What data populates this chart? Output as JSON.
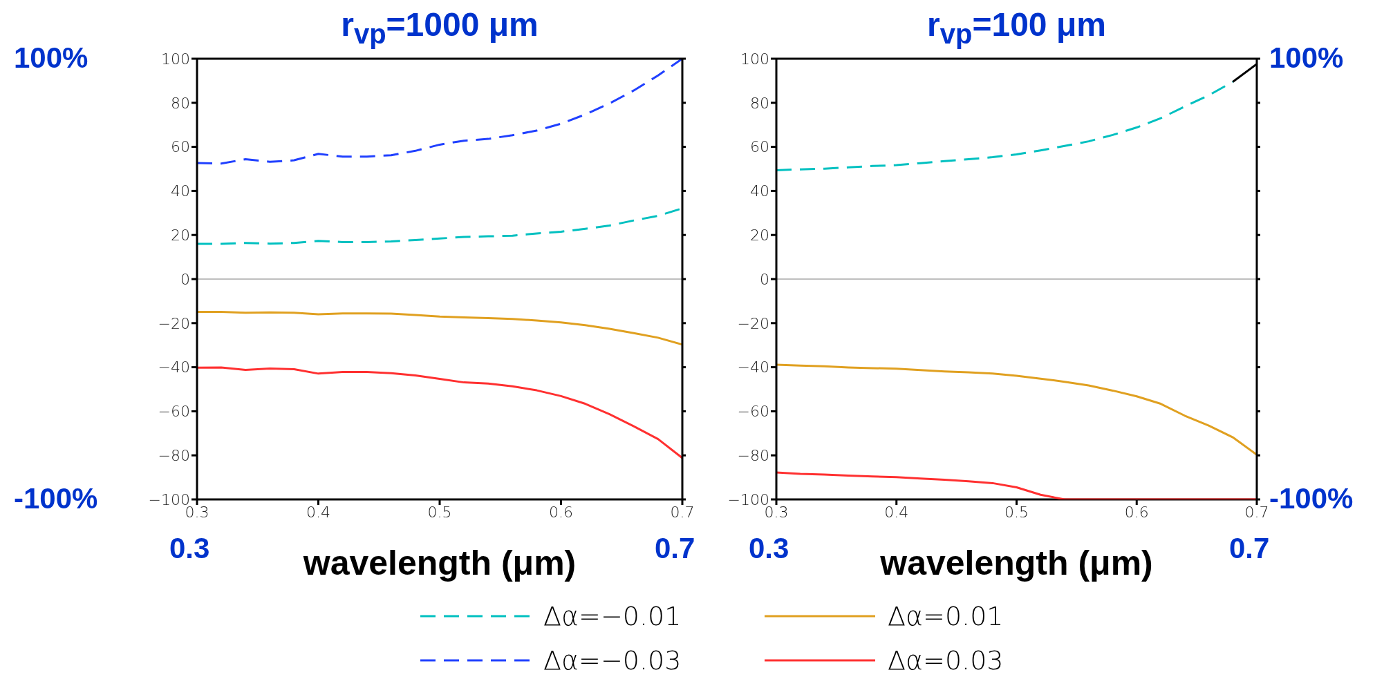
{
  "chart_data": [
    {
      "type": "line",
      "title": "r$_{vp}$=1000 μm",
      "xlabel": "wavelength (μm)",
      "xlim": [
        0.3,
        0.7
      ],
      "xticks": [
        0.3,
        0.4,
        0.5,
        0.6,
        0.7
      ],
      "ylim": [
        -100,
        100
      ],
      "yticks": [
        -100,
        -80,
        -60,
        -40,
        -20,
        0,
        20,
        40,
        60,
        80,
        100
      ],
      "grid": false,
      "legend": "bottom",
      "marker": "none",
      "x": [
        0.3,
        0.32,
        0.34,
        0.36,
        0.38,
        0.4,
        0.42,
        0.44,
        0.46,
        0.48,
        0.5,
        0.52,
        0.54,
        0.56,
        0.58,
        0.6,
        0.62,
        0.64,
        0.66,
        0.68,
        0.7
      ],
      "ref_lines": [
        {
          "axis": "y",
          "value": 0,
          "color": "#aaaaaa"
        }
      ],
      "annotations": [
        "100%",
        "-100%",
        "0.3",
        "0.7"
      ],
      "series": [
        {
          "name": "Δα=−0.01",
          "color": "#00c0c0",
          "line_style": "dashed",
          "values": [
            16,
            16,
            16.4,
            16.1,
            16.4,
            17.3,
            16.8,
            16.8,
            17.1,
            17.7,
            18.4,
            19.1,
            19.4,
            19.7,
            20.7,
            21.5,
            22.8,
            24.3,
            26.6,
            28.7,
            32.1
          ]
        },
        {
          "name": "Δα=−0.03",
          "color": "#2040ff",
          "line_style": "dashed",
          "values": [
            52.7,
            52.4,
            54.4,
            53.2,
            53.9,
            56.8,
            55.6,
            55.6,
            56.2,
            58.2,
            61,
            62.8,
            63.6,
            65.3,
            67.4,
            70.5,
            74.7,
            79.7,
            85.6,
            92.4,
            100
          ]
        },
        {
          "name": "Δα=0.01",
          "color": "#e0a020",
          "line_style": "solid",
          "values": [
            -14.9,
            -14.9,
            -15.3,
            -15.1,
            -15.3,
            -16,
            -15.6,
            -15.6,
            -15.7,
            -16.3,
            -17,
            -17.4,
            -17.7,
            -18.1,
            -18.8,
            -19.7,
            -20.9,
            -22.6,
            -24.5,
            -26.6,
            -29.7
          ]
        },
        {
          "name": "Δα=0.03",
          "color": "#ff3030",
          "line_style": "solid",
          "values": [
            -40.2,
            -40.1,
            -41.2,
            -40.6,
            -40.9,
            -42.9,
            -42.2,
            -42.2,
            -42.7,
            -43.7,
            -45.3,
            -46.9,
            -47.4,
            -48.7,
            -50.5,
            -53.1,
            -56.6,
            -61.3,
            -66.8,
            -72.6,
            -81.2
          ]
        }
      ]
    },
    {
      "type": "line",
      "title": "r$_{vp}$=100 μm",
      "xlabel": "wavelength (μm)",
      "xlim": [
        0.3,
        0.7
      ],
      "xticks": [
        0.3,
        0.4,
        0.5,
        0.6,
        0.7
      ],
      "ylim": [
        -100,
        100
      ],
      "yticks": [
        -100,
        -80,
        -60,
        -40,
        -20,
        0,
        20,
        40,
        60,
        80,
        100
      ],
      "grid": false,
      "legend": "bottom",
      "marker": "none",
      "x": [
        0.3,
        0.32,
        0.34,
        0.36,
        0.38,
        0.4,
        0.42,
        0.44,
        0.46,
        0.48,
        0.5,
        0.52,
        0.54,
        0.56,
        0.58,
        0.6,
        0.62,
        0.64,
        0.66,
        0.68,
        0.7
      ],
      "ref_lines": [
        {
          "axis": "y",
          "value": 0,
          "color": "#aaaaaa"
        }
      ],
      "annotations": [
        "100%",
        "-100%",
        "0.3",
        "0.7"
      ],
      "series": [
        {
          "name": "Δα=−0.01",
          "color": "#00c0c0",
          "line_style": "dashed",
          "values": [
            49.4,
            49.8,
            50.1,
            50.7,
            51.3,
            51.7,
            52.6,
            53.5,
            54.4,
            55.3,
            56.6,
            58.4,
            60.4,
            62.5,
            65.4,
            68.8,
            73,
            78.3,
            83.4,
            89.5,
            null
          ]
        },
        {
          "color": "#000000",
          "line_style": "solid",
          "x": [
            0.68,
            0.7
          ],
          "values": [
            89.5,
            97.6
          ]
        },
        {
          "name": "Δα=0.01",
          "color": "#e0a020",
          "line_style": "solid",
          "values": [
            -38.9,
            -39.3,
            -39.6,
            -40.1,
            -40.4,
            -40.7,
            -41.3,
            -41.9,
            -42.3,
            -42.9,
            -43.9,
            -45.2,
            -46.6,
            -48.3,
            -50.6,
            -53.2,
            -56.6,
            -62,
            -66.5,
            -71.8,
            -79.7
          ]
        },
        {
          "name": "Δα=0.03",
          "color": "#ff3030",
          "line_style": "solid",
          "values": [
            -87.8,
            -88.4,
            -88.7,
            -89.2,
            -89.6,
            -89.9,
            -90.5,
            -91.1,
            -91.8,
            -92.6,
            -94.5,
            -97.9,
            -100,
            -100,
            -100,
            -100,
            -100,
            -100,
            -100,
            -100,
            -100
          ]
        }
      ]
    }
  ]
}
